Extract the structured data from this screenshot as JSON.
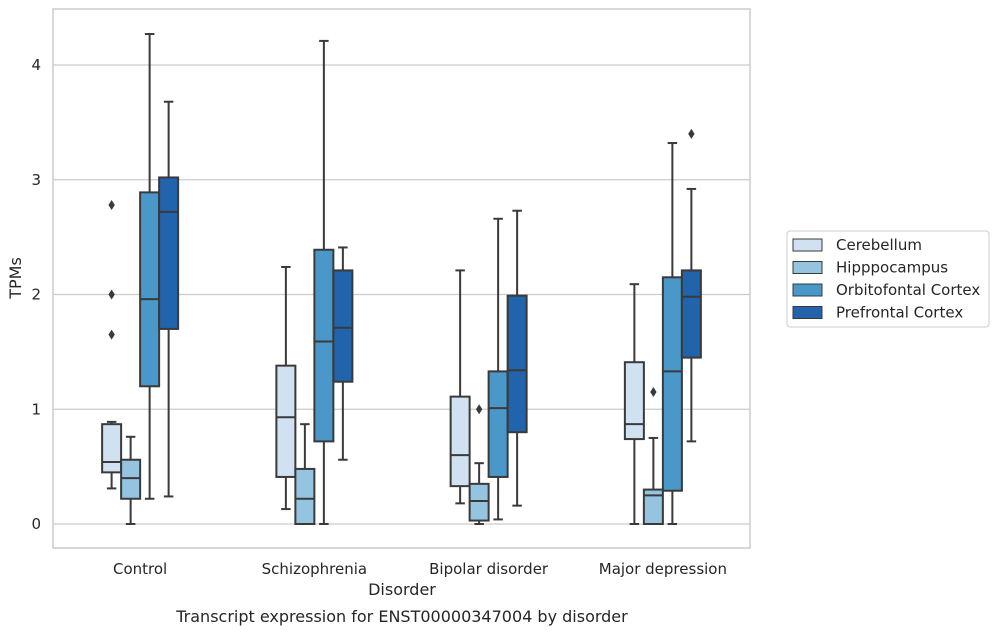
{
  "chart_data": {
    "type": "box",
    "title": "",
    "caption": "Transcript expression for ENST00000347004 by disorder",
    "xlabel": "Disorder",
    "ylabel": "TPMs",
    "ylim": [
      -0.2,
      4.5
    ],
    "yticks": [
      0,
      1,
      2,
      3,
      4
    ],
    "grid": "horizontal",
    "legend_position": "right",
    "categories": [
      "Control",
      "Schizophrenia",
      "Bipolar disorder",
      "Major depression"
    ],
    "series": [
      {
        "name": "Cerebellum",
        "color": "#d0e1f2",
        "boxes": [
          {
            "whislo": 0.31,
            "q1": 0.45,
            "med": 0.54,
            "q3": 0.87,
            "whishi": 0.89,
            "fliers": [
              2.78,
              2.0,
              1.65
            ]
          },
          {
            "whislo": 0.13,
            "q1": 0.41,
            "med": 0.93,
            "q3": 1.38,
            "whishi": 2.24,
            "fliers": []
          },
          {
            "whislo": 0.18,
            "q1": 0.33,
            "med": 0.6,
            "q3": 1.11,
            "whishi": 2.21,
            "fliers": []
          },
          {
            "whislo": 0.0,
            "q1": 0.74,
            "med": 0.87,
            "q3": 1.41,
            "whishi": 2.09,
            "fliers": []
          }
        ]
      },
      {
        "name": "Hipppocampus",
        "color": "#94c4df",
        "boxes": [
          {
            "whislo": 0.0,
            "q1": 0.22,
            "med": 0.4,
            "q3": 0.56,
            "whishi": 0.76,
            "fliers": []
          },
          {
            "whislo": 0.0,
            "q1": 0.0,
            "med": 0.22,
            "q3": 0.48,
            "whishi": 0.87,
            "fliers": []
          },
          {
            "whislo": 0.0,
            "q1": 0.03,
            "med": 0.2,
            "q3": 0.35,
            "whishi": 0.53,
            "fliers": [
              1.0
            ]
          },
          {
            "whislo": 0.0,
            "q1": 0.0,
            "med": 0.25,
            "q3": 0.3,
            "whishi": 0.75,
            "fliers": [
              1.15
            ]
          }
        ]
      },
      {
        "name": "Orbitofontal Cortex",
        "color": "#4a98c9",
        "boxes": [
          {
            "whislo": 0.22,
            "q1": 1.2,
            "med": 1.96,
            "q3": 2.89,
            "whishi": 4.27,
            "fliers": []
          },
          {
            "whislo": 0.0,
            "q1": 0.72,
            "med": 1.59,
            "q3": 2.39,
            "whishi": 4.21,
            "fliers": []
          },
          {
            "whislo": 0.04,
            "q1": 0.41,
            "med": 1.01,
            "q3": 1.33,
            "whishi": 2.66,
            "fliers": []
          },
          {
            "whislo": 0.0,
            "q1": 0.29,
            "med": 1.33,
            "q3": 2.15,
            "whishi": 3.32,
            "fliers": []
          }
        ]
      },
      {
        "name": "Prefrontal Cortex",
        "color": "#2164ab",
        "boxes": [
          {
            "whislo": 0.24,
            "q1": 1.7,
            "med": 2.72,
            "q3": 3.02,
            "whishi": 3.68,
            "fliers": []
          },
          {
            "whislo": 0.56,
            "q1": 1.24,
            "med": 1.71,
            "q3": 2.21,
            "whishi": 2.41,
            "fliers": []
          },
          {
            "whislo": 0.16,
            "q1": 0.8,
            "med": 1.34,
            "q3": 1.99,
            "whishi": 2.73,
            "fliers": []
          },
          {
            "whislo": 0.72,
            "q1": 1.45,
            "med": 1.98,
            "q3": 2.21,
            "whishi": 2.92,
            "fliers": [
              3.4
            ]
          }
        ]
      }
    ]
  }
}
